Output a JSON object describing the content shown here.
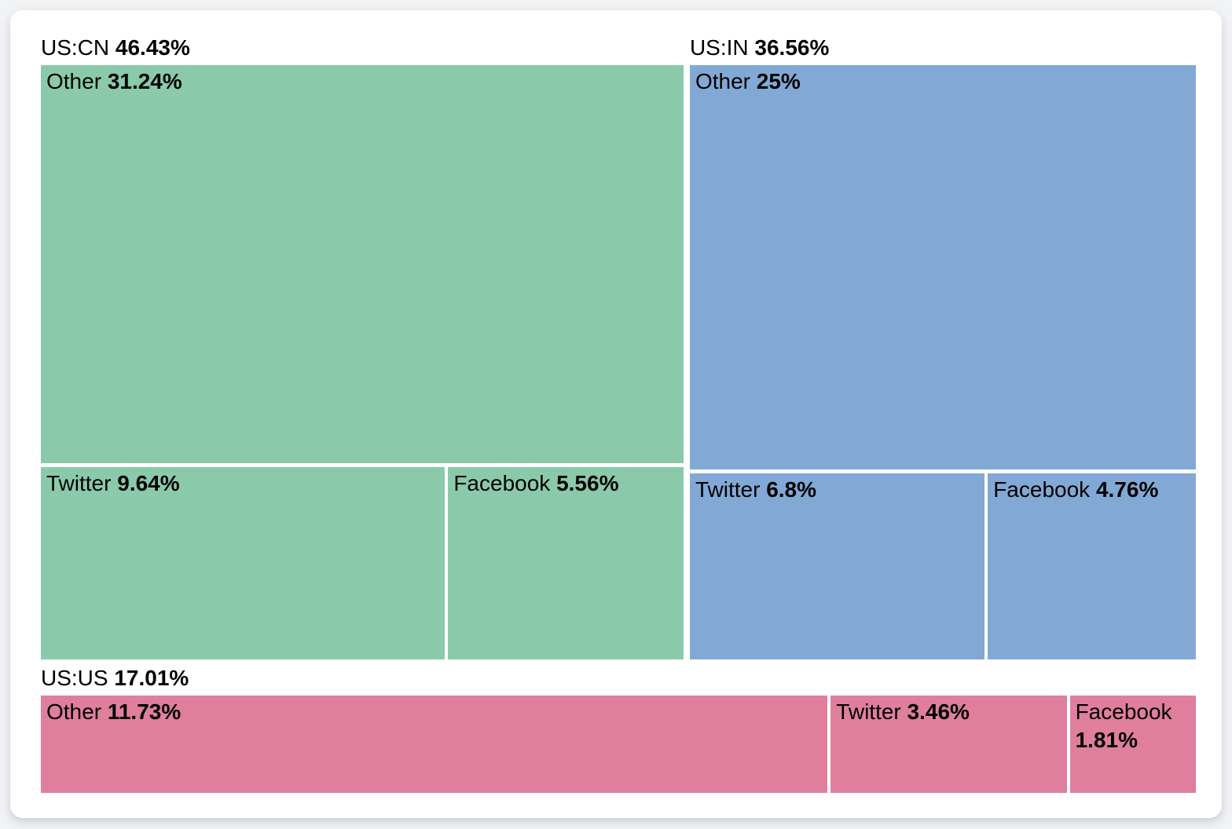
{
  "chart_data": {
    "type": "treemap",
    "title": "",
    "unit": "%",
    "legend_position": "none",
    "grid": false,
    "layout_hint": "top band: US:CN + US:IN side by side; bottom band: US:US full width; each group label above its cells; cell areas proportional to percentage values",
    "groups": [
      {
        "id": "us-cn",
        "label": "US:CN",
        "value": 46.43,
        "value_label": "46.43%",
        "color": "#8ACAAA",
        "cells": [
          {
            "label": "Other",
            "value": 31.24,
            "value_label": "31.24%"
          },
          {
            "label": "Twitter",
            "value": 9.64,
            "value_label": "9.64%"
          },
          {
            "label": "Facebook",
            "value": 5.56,
            "value_label": "5.56%"
          }
        ]
      },
      {
        "id": "us-in",
        "label": "US:IN",
        "value": 36.56,
        "value_label": "36.56%",
        "color": "#82A9D5",
        "cells": [
          {
            "label": "Other",
            "value": 25,
            "value_label": "25%"
          },
          {
            "label": "Twitter",
            "value": 6.8,
            "value_label": "6.8%"
          },
          {
            "label": "Facebook",
            "value": 4.76,
            "value_label": "4.76%"
          }
        ]
      },
      {
        "id": "us-us",
        "label": "US:US",
        "value": 17.01,
        "value_label": "17.01%",
        "color": "#DF7F9D",
        "cells": [
          {
            "label": "Other",
            "value": 11.73,
            "value_label": "11.73%"
          },
          {
            "label": "Twitter",
            "value": 3.46,
            "value_label": "3.46%"
          },
          {
            "label": "Facebook",
            "value": 1.81,
            "value_label": "1.81%"
          }
        ]
      }
    ]
  }
}
